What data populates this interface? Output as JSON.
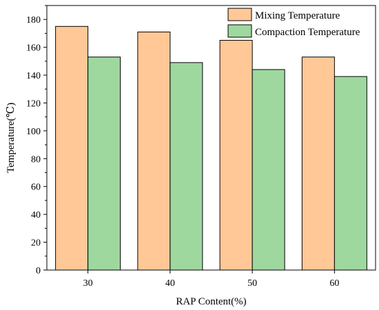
{
  "chart_data": {
    "type": "bar",
    "categories": [
      "30",
      "40",
      "50",
      "60"
    ],
    "series": [
      {
        "name": "Mixing Temperature",
        "values": [
          175,
          171,
          165,
          153
        ],
        "color": "#FFC896"
      },
      {
        "name": "Compaction Temperature",
        "values": [
          153,
          149,
          144,
          139
        ],
        "color": "#9ED89E"
      }
    ],
    "xlabel": "RAP Content(%)",
    "ylabel": "Temperature(℃)",
    "ylim": [
      0,
      190
    ],
    "yticks": [
      0,
      20,
      40,
      60,
      80,
      100,
      120,
      140,
      160,
      180
    ],
    "grid": false,
    "legend_position": "top-right"
  }
}
